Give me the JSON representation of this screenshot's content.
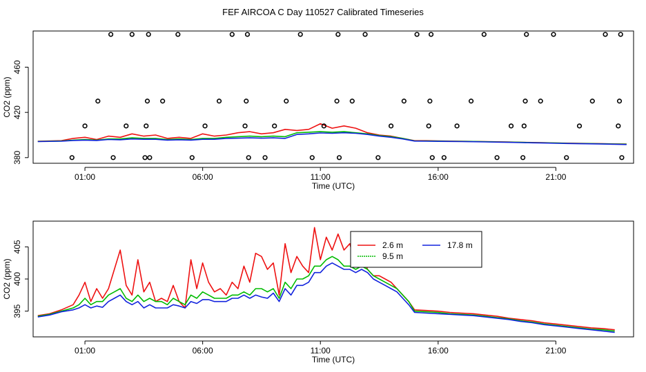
{
  "figure_title": "FEF AIRCOA C  Day 110527  Calibrated Timeseries",
  "colors": {
    "s26": "#ee1111",
    "s95": "#00bb00",
    "s178": "#1122dd",
    "frame": "#000000"
  },
  "chart_data": [
    {
      "id": "top",
      "type": "scatter+line",
      "title": "",
      "xlabel": "Time (UTC)",
      "ylabel": "CO2 (ppm)",
      "xlim": [
        -1.2,
        24.3
      ],
      "ylim": [
        375,
        492
      ],
      "xticks": [
        1,
        6,
        11,
        16,
        21
      ],
      "xtick_labels": [
        "01:00",
        "06:00",
        "11:00",
        "16:00",
        "21:00"
      ],
      "yticks": [
        380,
        420,
        460
      ],
      "ytick_labels": [
        "380",
        "420",
        "460"
      ],
      "points": {
        "x": [
          0.45,
          1.0,
          1.55,
          2.1,
          2.2,
          2.75,
          3.0,
          3.55,
          3.6,
          3.65,
          3.7,
          3.75,
          4.3,
          4.95,
          5.55,
          6.1,
          6.7,
          7.25,
          7.8,
          7.85,
          7.9,
          7.95,
          8.65,
          9.05,
          9.55,
          10.15,
          10.65,
          11.15,
          11.7,
          11.75,
          11.8,
          12.35,
          12.9,
          13.45,
          14.0,
          14.55,
          15.1,
          15.6,
          15.65,
          15.7,
          15.75,
          16.25,
          16.8,
          17.4,
          17.95,
          18.5,
          19.1,
          19.6,
          19.65,
          19.7,
          19.75,
          20.35,
          20.9,
          21.45,
          22.0,
          22.55,
          23.1,
          23.65,
          23.7,
          23.75,
          23.8
        ],
        "y": [
          380,
          408,
          430,
          489,
          380,
          408,
          489,
          380,
          408,
          430,
          489,
          380,
          430,
          489,
          380,
          408,
          430,
          489,
          408,
          430,
          489,
          380,
          380,
          408,
          430,
          489,
          380,
          408,
          430,
          489,
          380,
          430,
          489,
          380,
          408,
          430,
          489,
          408,
          430,
          489,
          380,
          380,
          408,
          430,
          489,
          380,
          408,
          380,
          408,
          430,
          489,
          430,
          489,
          380,
          408,
          430,
          489,
          408,
          430,
          489,
          380
        ]
      },
      "series": [
        {
          "name": "2.6 m",
          "color": "#ee1111",
          "x": [
            -1,
            0,
            0.5,
            1,
            1.5,
            2,
            2.5,
            3,
            3.5,
            4,
            4.5,
            5,
            5.5,
            6,
            6.5,
            7,
            7.5,
            8,
            8.5,
            9,
            9.5,
            10,
            10.5,
            11,
            11.5,
            12,
            12.5,
            13,
            13.5,
            14,
            14.5,
            15,
            15.5,
            16,
            16.5,
            17,
            17.5,
            18,
            18.5,
            19,
            19.5,
            20,
            20.5,
            21,
            21.5,
            22,
            22.5,
            23,
            23.5,
            24
          ],
          "values": [
            394.5,
            395,
            397,
            398,
            396,
            399,
            398,
            401,
            399,
            400,
            397,
            398,
            397,
            401,
            399,
            400,
            402,
            403,
            401,
            402,
            405,
            404,
            405,
            410,
            406,
            408,
            406,
            402,
            400,
            399,
            397,
            395,
            395,
            394.8,
            394.6,
            394.5,
            394.3,
            394.2,
            394,
            393.8,
            393.6,
            393.4,
            393.2,
            393,
            392.8,
            392.6,
            392.5,
            392.3,
            392.1,
            392
          ]
        },
        {
          "name": "9.5 m",
          "color": "#00bb00",
          "x": [
            -1,
            0,
            0.5,
            1,
            1.5,
            2,
            2.5,
            3,
            3.5,
            4,
            4.5,
            5,
            5.5,
            6,
            6.5,
            7,
            7.5,
            8,
            8.5,
            9,
            9.5,
            10,
            10.5,
            11,
            11.5,
            12,
            12.5,
            13,
            13.5,
            14,
            14.5,
            15,
            15.5,
            16,
            16.5,
            17,
            17.5,
            18,
            18.5,
            19,
            19.5,
            20,
            20.5,
            21,
            21.5,
            22,
            22.5,
            23,
            23.5,
            24
          ],
          "values": [
            394.3,
            394.7,
            395.5,
            396,
            395.5,
            396.5,
            396.5,
            397.5,
            397,
            397,
            396,
            396.5,
            396,
            397,
            397,
            398,
            398.5,
            399,
            398.5,
            399,
            398.5,
            402,
            402.5,
            403,
            402.5,
            403,
            402,
            401,
            399.5,
            398.5,
            397,
            394.8,
            394.7,
            394.6,
            394.5,
            394.4,
            394.3,
            394.1,
            393.9,
            393.7,
            393.5,
            393.3,
            393.1,
            392.9,
            392.7,
            392.5,
            392.4,
            392.2,
            392,
            391.9
          ]
        },
        {
          "name": "17.8 m",
          "color": "#1122dd",
          "x": [
            -1,
            0,
            0.5,
            1,
            1.5,
            2,
            2.5,
            3,
            3.5,
            4,
            4.5,
            5,
            5.5,
            6,
            6.5,
            7,
            7.5,
            8,
            8.5,
            9,
            9.5,
            10,
            10.5,
            11,
            11.5,
            12,
            12.5,
            13,
            13.5,
            14,
            14.5,
            15,
            15.5,
            16,
            16.5,
            17,
            17.5,
            18,
            18.5,
            19,
            19.5,
            20,
            20.5,
            21,
            21.5,
            22,
            22.5,
            23,
            23.5,
            24
          ],
          "values": [
            394.2,
            394.5,
            395.2,
            395.5,
            395.2,
            396,
            395.8,
            396.5,
            396.2,
            396.2,
            395.5,
            395.8,
            395.5,
            396.2,
            396.2,
            397,
            397.2,
            397.5,
            397.2,
            397.5,
            397,
            400.5,
            401,
            401.8,
            401.5,
            402,
            401.5,
            400.5,
            399,
            398,
            396.5,
            394.6,
            394.5,
            394.4,
            394.3,
            394.2,
            394.1,
            393.9,
            393.7,
            393.5,
            393.3,
            393.1,
            392.9,
            392.7,
            392.5,
            392.3,
            392.2,
            392,
            391.8,
            391.6
          ]
        }
      ]
    },
    {
      "id": "bottom",
      "type": "line",
      "title": "",
      "xlabel": "Time (UTC)",
      "ylabel": "CO2 (ppm)",
      "xlim": [
        -1.2,
        24.3
      ],
      "ylim": [
        391,
        409
      ],
      "xticks": [
        1,
        6,
        11,
        16,
        21
      ],
      "xtick_labels": [
        "01:00",
        "06:00",
        "11:00",
        "16:00",
        "21:00"
      ],
      "yticks": [
        395,
        400,
        405
      ],
      "ytick_labels": [
        "395",
        "400",
        "405"
      ],
      "legend": {
        "entries": [
          "2.6 m",
          "9.5 m",
          "17.8 m"
        ],
        "placement": "top-center"
      },
      "series": [
        {
          "name": "2.6 m",
          "color": "#ee1111",
          "x": [
            -1,
            -0.5,
            0,
            0.5,
            0.75,
            1,
            1.25,
            1.5,
            1.75,
            2,
            2.25,
            2.5,
            2.75,
            3,
            3.25,
            3.5,
            3.75,
            4,
            4.25,
            4.5,
            4.75,
            5,
            5.25,
            5.5,
            5.75,
            6,
            6.25,
            6.5,
            6.75,
            7,
            7.25,
            7.5,
            7.75,
            8,
            8.25,
            8.5,
            8.75,
            9,
            9.25,
            9.5,
            9.75,
            10,
            10.25,
            10.5,
            10.75,
            11,
            11.25,
            11.5,
            11.75,
            12,
            12.25,
            12.5,
            12.75,
            13,
            13.25,
            13.5,
            13.75,
            14,
            14.25,
            14.5,
            14.75,
            15,
            15.5,
            16,
            16.5,
            17,
            17.5,
            18,
            18.5,
            19,
            19.5,
            20,
            20.5,
            21,
            21.5,
            22,
            22.5,
            23,
            23.5
          ],
          "values": [
            394.3,
            394.6,
            395.2,
            396,
            397.5,
            399.5,
            396.5,
            398.5,
            397,
            398.5,
            401.5,
            404.5,
            399,
            397.5,
            403,
            398,
            399.5,
            396.5,
            397,
            396.5,
            399,
            396.5,
            395.5,
            403,
            398.5,
            402.5,
            399.5,
            398,
            398.5,
            397.5,
            399.5,
            398.5,
            402,
            399.5,
            404,
            403.5,
            401.5,
            402.5,
            397.5,
            405.5,
            401,
            403.5,
            402,
            401,
            408,
            403,
            406.5,
            404.5,
            407,
            404.5,
            405.5,
            402,
            404,
            401.5,
            400.5,
            400.5,
            400,
            399.5,
            398.5,
            397.5,
            396.5,
            395.2,
            395.1,
            395,
            394.8,
            394.7,
            394.6,
            394.4,
            394.2,
            393.9,
            393.7,
            393.5,
            393.2,
            393,
            392.8,
            392.6,
            392.4,
            392.3,
            392.1
          ]
        },
        {
          "name": "9.5 m",
          "color": "#00bb00",
          "x": [
            -1,
            -0.5,
            0,
            0.5,
            0.75,
            1,
            1.25,
            1.5,
            1.75,
            2,
            2.25,
            2.5,
            2.75,
            3,
            3.25,
            3.5,
            3.75,
            4,
            4.25,
            4.5,
            4.75,
            5,
            5.25,
            5.5,
            5.75,
            6,
            6.25,
            6.5,
            6.75,
            7,
            7.25,
            7.5,
            7.75,
            8,
            8.25,
            8.5,
            8.75,
            9,
            9.25,
            9.5,
            9.75,
            10,
            10.25,
            10.5,
            10.75,
            11,
            11.25,
            11.5,
            11.75,
            12,
            12.25,
            12.5,
            12.75,
            13,
            13.25,
            13.5,
            13.75,
            14,
            14.25,
            14.5,
            14.75,
            15,
            15.5,
            16,
            16.5,
            17,
            17.5,
            18,
            18.5,
            19,
            19.5,
            20,
            20.5,
            21,
            21.5,
            22,
            22.5,
            23,
            23.5
          ],
          "values": [
            394.2,
            394.5,
            395,
            395.5,
            396,
            397,
            396,
            396.5,
            396.5,
            397.5,
            398,
            398.5,
            397,
            396.5,
            397.5,
            396.5,
            397,
            396.5,
            396.5,
            396,
            397,
            396.5,
            396,
            397.5,
            397,
            398,
            397.5,
            397,
            397,
            397,
            397.5,
            397.5,
            398,
            397.5,
            398.5,
            398.5,
            398,
            398.5,
            397,
            399.5,
            398.5,
            400,
            400,
            400.5,
            402,
            402,
            403,
            403.5,
            403,
            402,
            402,
            401.5,
            402,
            401.5,
            400.5,
            400,
            399.5,
            399,
            398.5,
            397.5,
            396.5,
            395,
            394.9,
            394.8,
            394.6,
            394.5,
            394.4,
            394.2,
            394,
            393.8,
            393.5,
            393.3,
            393,
            392.8,
            392.6,
            392.4,
            392.2,
            392.1,
            391.9
          ]
        },
        {
          "name": "17.8 m",
          "color": "#1122dd",
          "x": [
            -1,
            -0.5,
            0,
            0.5,
            0.75,
            1,
            1.25,
            1.5,
            1.75,
            2,
            2.25,
            2.5,
            2.75,
            3,
            3.25,
            3.5,
            3.75,
            4,
            4.25,
            4.5,
            4.75,
            5,
            5.25,
            5.5,
            5.75,
            6,
            6.25,
            6.5,
            6.75,
            7,
            7.25,
            7.5,
            7.75,
            8,
            8.25,
            8.5,
            8.75,
            9,
            9.25,
            9.5,
            9.75,
            10,
            10.25,
            10.5,
            10.75,
            11,
            11.25,
            11.5,
            11.75,
            12,
            12.25,
            12.5,
            12.75,
            13,
            13.25,
            13.5,
            13.75,
            14,
            14.25,
            14.5,
            14.75,
            15,
            15.5,
            16,
            16.5,
            17,
            17.5,
            18,
            18.5,
            19,
            19.5,
            20,
            20.5,
            21,
            21.5,
            22,
            22.5,
            23,
            23.5
          ],
          "values": [
            394.1,
            394.4,
            394.9,
            395.2,
            395.5,
            396,
            395.5,
            395.8,
            395.6,
            396.5,
            397,
            397.5,
            396.5,
            396,
            396.5,
            395.5,
            396,
            395.5,
            395.5,
            395.5,
            396,
            395.8,
            395.5,
            396.5,
            396.2,
            396.8,
            396.8,
            396.5,
            396.5,
            396.5,
            397,
            397,
            397.5,
            397,
            397.5,
            397.2,
            397,
            397.8,
            396.5,
            398.5,
            397.5,
            399,
            399,
            399.5,
            401,
            401,
            402,
            402.5,
            402,
            401.5,
            401.5,
            401,
            401.5,
            401,
            400,
            399.5,
            399,
            398.5,
            398,
            397,
            396,
            394.8,
            394.7,
            394.6,
            394.5,
            394.4,
            394.3,
            394.1,
            393.9,
            393.7,
            393.4,
            393.2,
            392.9,
            392.7,
            392.5,
            392.3,
            392.1,
            391.9,
            391.7
          ]
        }
      ]
    }
  ]
}
